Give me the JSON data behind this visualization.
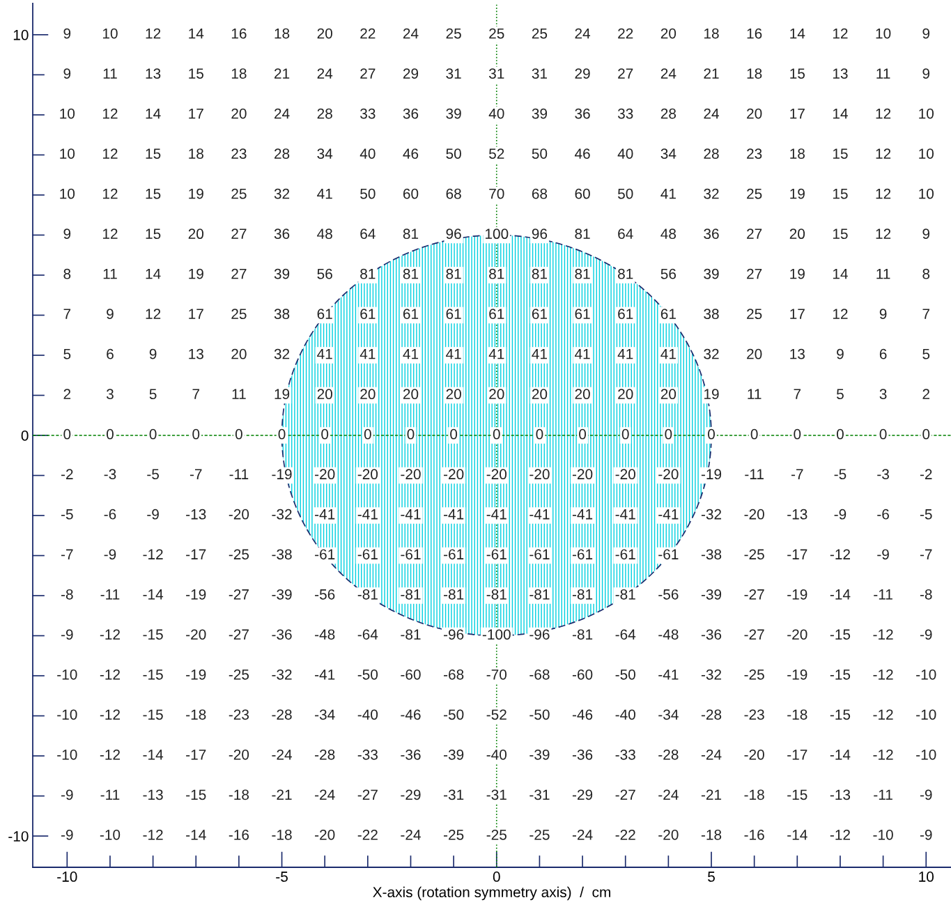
{
  "chart_data": {
    "type": "heatmap",
    "xlabel": "X-axis (rotation symmetry axis)  /  cm",
    "x": [
      -10,
      -9,
      -8,
      -7,
      -6,
      -5,
      -4,
      -3,
      -2,
      -1,
      0,
      1,
      2,
      3,
      4,
      5,
      6,
      7,
      8,
      9,
      10
    ],
    "y": [
      10,
      9,
      8,
      7,
      6,
      5,
      4,
      3,
      2,
      1,
      0,
      -1,
      -2,
      -3,
      -4,
      -5,
      -6,
      -7,
      -8,
      -9,
      -10
    ],
    "xlim": [
      -10.8,
      10.58
    ],
    "ylim": [
      -10.78,
      10.78
    ],
    "xticks": [
      -10,
      {
        "value": -9,
        "label": null
      },
      {
        "value": -8,
        "label": null
      },
      {
        "value": -7,
        "label": null
      },
      {
        "value": -6,
        "label": null
      },
      -5,
      {
        "value": -4,
        "label": null
      },
      {
        "value": -3,
        "label": null
      },
      {
        "value": -2,
        "label": null
      },
      {
        "value": -1,
        "label": null
      },
      0,
      {
        "value": 1,
        "label": null
      },
      {
        "value": 2,
        "label": null
      },
      {
        "value": 3,
        "label": null
      },
      {
        "value": 4,
        "label": null
      },
      5,
      {
        "value": 6,
        "label": null
      },
      {
        "value": 7,
        "label": null
      },
      {
        "value": 8,
        "label": null
      },
      {
        "value": 9,
        "label": null
      },
      10
    ],
    "yticks": [
      -10,
      {
        "value": -9,
        "label": null
      },
      {
        "value": -8,
        "label": null
      },
      {
        "value": -7,
        "label": null
      },
      {
        "value": -6,
        "label": null
      },
      {
        "value": -5,
        "label": null
      },
      {
        "value": -4,
        "label": null
      },
      {
        "value": -3,
        "label": null
      },
      {
        "value": -2,
        "label": null
      },
      {
        "value": -1,
        "label": null
      },
      0,
      {
        "value": 1,
        "label": null
      },
      {
        "value": 2,
        "label": null
      },
      {
        "value": 3,
        "label": null
      },
      {
        "value": 4,
        "label": null
      },
      {
        "value": 5,
        "label": null
      },
      {
        "value": 6,
        "label": null
      },
      {
        "value": 7,
        "label": null
      },
      {
        "value": 8,
        "label": null
      },
      {
        "value": 9,
        "label": null
      },
      10
    ],
    "cells": [
      [
        9,
        10,
        12,
        14,
        16,
        18,
        20,
        22,
        24,
        25,
        25,
        25,
        24,
        22,
        20,
        18,
        16,
        14,
        12,
        10,
        9
      ],
      [
        9,
        11,
        13,
        15,
        18,
        21,
        24,
        27,
        29,
        31,
        31,
        31,
        29,
        27,
        24,
        21,
        18,
        15,
        13,
        11,
        9
      ],
      [
        10,
        12,
        14,
        17,
        20,
        24,
        28,
        33,
        36,
        39,
        40,
        39,
        36,
        33,
        28,
        24,
        20,
        17,
        14,
        12,
        10
      ],
      [
        10,
        12,
        15,
        18,
        23,
        28,
        34,
        40,
        46,
        50,
        52,
        50,
        46,
        40,
        34,
        28,
        23,
        18,
        15,
        12,
        10
      ],
      [
        10,
        12,
        15,
        19,
        25,
        32,
        41,
        50,
        60,
        68,
        70,
        68,
        60,
        50,
        41,
        32,
        25,
        19,
        15,
        12,
        10
      ],
      [
        9,
        12,
        15,
        20,
        27,
        36,
        48,
        64,
        81,
        96,
        100,
        96,
        81,
        64,
        48,
        36,
        27,
        20,
        15,
        12,
        9
      ],
      [
        8,
        11,
        14,
        19,
        27,
        39,
        56,
        81,
        81,
        81,
        81,
        81,
        81,
        81,
        56,
        39,
        27,
        19,
        14,
        11,
        8
      ],
      [
        7,
        9,
        12,
        17,
        25,
        38,
        61,
        61,
        61,
        61,
        61,
        61,
        61,
        61,
        61,
        38,
        25,
        17,
        12,
        9,
        7
      ],
      [
        5,
        6,
        9,
        13,
        20,
        32,
        41,
        41,
        41,
        41,
        41,
        41,
        41,
        41,
        41,
        32,
        20,
        13,
        9,
        6,
        5
      ],
      [
        2,
        3,
        5,
        7,
        11,
        19,
        20,
        20,
        20,
        20,
        20,
        20,
        20,
        20,
        20,
        19,
        11,
        7,
        5,
        3,
        2
      ],
      [
        0,
        0,
        0,
        0,
        0,
        0,
        0,
        0,
        0,
        0,
        0,
        0,
        0,
        0,
        0,
        0,
        0,
        0,
        0,
        0,
        0
      ],
      [
        -2,
        -3,
        -5,
        -7,
        -11,
        -19,
        -20,
        -20,
        -20,
        -20,
        -20,
        -20,
        -20,
        -20,
        -20,
        -19,
        -11,
        -7,
        -5,
        -3,
        -2
      ],
      [
        -5,
        -6,
        -9,
        -13,
        -20,
        -32,
        -41,
        -41,
        -41,
        -41,
        -41,
        -41,
        -41,
        -41,
        -41,
        -32,
        -20,
        -13,
        -9,
        -6,
        -5
      ],
      [
        -7,
        -9,
        -12,
        -17,
        -25,
        -38,
        -61,
        -61,
        -61,
        -61,
        -61,
        -61,
        -61,
        -61,
        -61,
        -38,
        -25,
        -17,
        -12,
        -9,
        -7
      ],
      [
        -8,
        -11,
        -14,
        -19,
        -27,
        -39,
        -56,
        -81,
        -81,
        -81,
        -81,
        -81,
        -81,
        -81,
        -56,
        -39,
        -27,
        -19,
        -14,
        -11,
        -8
      ],
      [
        -9,
        -12,
        -15,
        -20,
        -27,
        -36,
        -48,
        -64,
        -81,
        -96,
        -100,
        -96,
        -81,
        -64,
        -48,
        -36,
        -27,
        -20,
        -15,
        -12,
        -9
      ],
      [
        -10,
        -12,
        -15,
        -19,
        -25,
        -32,
        -41,
        -50,
        -60,
        -68,
        -70,
        -68,
        -60,
        -50,
        -41,
        -32,
        -25,
        -19,
        -15,
        -12,
        -10
      ],
      [
        -10,
        -12,
        -15,
        -18,
        -23,
        -28,
        -34,
        -40,
        -46,
        -50,
        -52,
        -50,
        -46,
        -40,
        -34,
        -28,
        -23,
        -18,
        -15,
        -12,
        -10
      ],
      [
        -10,
        -12,
        -14,
        -17,
        -20,
        -24,
        -28,
        -33,
        -36,
        -39,
        -40,
        -39,
        -36,
        -33,
        -28,
        -24,
        -20,
        -17,
        -14,
        -12,
        -10
      ],
      [
        -9,
        -11,
        -13,
        -15,
        -18,
        -21,
        -24,
        -27,
        -29,
        -31,
        -31,
        -31,
        -29,
        -27,
        -24,
        -21,
        -18,
        -15,
        -13,
        -11,
        -9
      ],
      [
        -9,
        -10,
        -12,
        -14,
        -16,
        -18,
        -20,
        -22,
        -24,
        -25,
        -25,
        -25,
        -24,
        -22,
        -20,
        -18,
        -16,
        -14,
        -12,
        -10,
        -9
      ]
    ],
    "data_labels": true,
    "ref_lines": [
      {
        "axis": "x",
        "value": 0,
        "color": "#008000",
        "line_style": "dotted"
      },
      {
        "axis": "y",
        "value": 0,
        "color": "#008000",
        "line_style": "dashed"
      }
    ]
  }
}
